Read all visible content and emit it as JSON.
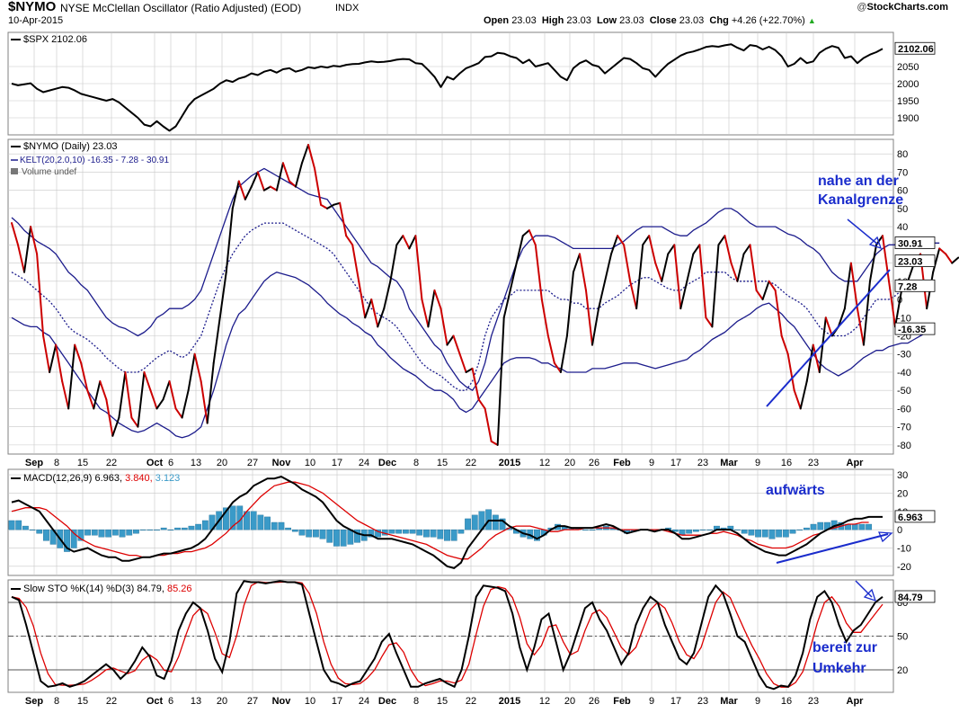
{
  "header": {
    "symbol": "$NYMO",
    "description": "NYSE McClellan Oscillator (Ratio Adjusted) (EOD)",
    "exchange": "INDX",
    "date": "10-Apr-2015",
    "open_label": "Open",
    "open": "23.03",
    "high_label": "High",
    "high": "23.03",
    "low_label": "Low",
    "low": "23.03",
    "close_label": "Close",
    "close": "23.03",
    "chg_label": "Chg",
    "chg": "+4.26 (+22.70%)",
    "brand_prefix": "@",
    "brand": "StockCharts.com",
    "chg_icon": "triangle-up-icon"
  },
  "colors": {
    "price": "#000000",
    "price_down": "#cc0000",
    "kelt": "#1c1c8c",
    "macd_line": "#000000",
    "signal_line": "#dd0000",
    "histogram": "#3a9ac8",
    "annotation": "#1a2ccc",
    "grid": "#c8c8c8"
  },
  "annotations": [
    {
      "panel": "nymo",
      "text": "nahe an der"
    },
    {
      "panel": "nymo",
      "text": "Kanalgrenze"
    },
    {
      "panel": "macd",
      "text": "aufwärts"
    },
    {
      "panel": "sto",
      "text": "bereit zur"
    },
    {
      "panel": "sto",
      "text": "Umkehr"
    }
  ],
  "chart_data": [
    {
      "panel": "spx",
      "type": "line",
      "legend": "$SPX 2102.06",
      "last_value": "2102.06",
      "ylim": [
        1850,
        2150
      ],
      "yticks": [
        1900,
        1950,
        2000,
        2050
      ],
      "values": [
        2000,
        1995,
        1998,
        2001,
        1985,
        1975,
        1980,
        1985,
        1990,
        1988,
        1980,
        1970,
        1965,
        1960,
        1955,
        1950,
        1955,
        1945,
        1930,
        1915,
        1900,
        1880,
        1875,
        1890,
        1875,
        1862,
        1875,
        1905,
        1935,
        1955,
        1965,
        1975,
        1985,
        2000,
        2010,
        2005,
        2015,
        2020,
        2030,
        2025,
        2035,
        2040,
        2032,
        2042,
        2045,
        2035,
        2040,
        2048,
        2045,
        2050,
        2047,
        2052,
        2050,
        2055,
        2057,
        2058,
        2062,
        2065,
        2063,
        2064,
        2066,
        2070,
        2072,
        2071,
        2060,
        2058,
        2040,
        2020,
        1990,
        2020,
        2012,
        2030,
        2045,
        2052,
        2060,
        2078,
        2080,
        2090,
        2088,
        2080,
        2075,
        2060,
        2070,
        2050,
        2055,
        2060,
        2040,
        2020,
        2010,
        2045,
        2060,
        2068,
        2055,
        2050,
        2030,
        2045,
        2060,
        2075,
        2072,
        2060,
        2045,
        2040,
        2020,
        2040,
        2058,
        2070,
        2082,
        2090,
        2094,
        2100,
        2107,
        2110,
        2108,
        2112,
        2115,
        2105,
        2097,
        2113,
        2110,
        2100,
        2108,
        2098,
        2080,
        2050,
        2058,
        2075,
        2060,
        2065,
        2090,
        2102,
        2110,
        2105,
        2075,
        2080,
        2060,
        2075,
        2085,
        2092,
        2102
      ]
    },
    {
      "panel": "nymo",
      "type": "line",
      "legend": "$NYMO (Daily) 23.03",
      "legend2": "KELT(20,2.0,10) -16.35 - 7.28 - 30.91",
      "legend3": "Volume undef",
      "ylim": [
        -85,
        88
      ],
      "yticks": [
        -80,
        -70,
        -60,
        -50,
        -40,
        -30,
        -20,
        -10,
        0,
        10,
        20,
        30,
        40,
        50,
        60,
        70,
        80
      ],
      "labels": {
        "last": "23.03",
        "upper": "30.91",
        "middle": "7.28",
        "lower": "-16.35"
      },
      "values": [
        42,
        30,
        15,
        40,
        25,
        -20,
        -40,
        -25,
        -45,
        -60,
        -25,
        -35,
        -50,
        -60,
        -45,
        -55,
        -75,
        -65,
        -40,
        -65,
        -70,
        -40,
        -50,
        -60,
        -55,
        -45,
        -60,
        -65,
        -50,
        -30,
        -45,
        -68,
        -35,
        -10,
        15,
        50,
        65,
        55,
        62,
        70,
        60,
        62,
        60,
        75,
        65,
        62,
        75,
        85,
        72,
        52,
        50,
        52,
        53,
        35,
        30,
        10,
        -10,
        0,
        -15,
        -5,
        10,
        30,
        35,
        28,
        35,
        0,
        -15,
        5,
        -5,
        -25,
        -20,
        -30,
        -40,
        -38,
        -55,
        -60,
        -78,
        -80,
        -10,
        5,
        20,
        35,
        38,
        30,
        0,
        -20,
        -35,
        -40,
        -20,
        15,
        25,
        5,
        -25,
        -5,
        10,
        25,
        35,
        30,
        10,
        -5,
        30,
        35,
        20,
        10,
        25,
        30,
        -5,
        10,
        25,
        30,
        -10,
        -15,
        30,
        35,
        20,
        10,
        25,
        30,
        5,
        0,
        10,
        5,
        -20,
        -30,
        -50,
        -60,
        -45,
        -25,
        -40,
        -10,
        -20,
        -15,
        -5,
        20,
        -5,
        -25,
        10,
        30,
        35,
        10,
        -15,
        5,
        10,
        20,
        25,
        -5,
        15,
        28,
        25,
        20,
        23
      ]
    },
    {
      "panel": "nymo",
      "type": "line",
      "series_of": "KELT",
      "name": "upper",
      "values": [
        45,
        42,
        38,
        35,
        32,
        30,
        28,
        25,
        20,
        15,
        12,
        8,
        5,
        0,
        -5,
        -10,
        -13,
        -15,
        -16,
        -18,
        -20,
        -18,
        -15,
        -10,
        -8,
        -5,
        -5,
        -5,
        -3,
        0,
        5,
        15,
        25,
        35,
        45,
        55,
        62,
        65,
        68,
        70,
        72,
        70,
        68,
        66,
        64,
        62,
        60,
        58,
        57,
        56,
        55,
        50,
        45,
        40,
        35,
        30,
        25,
        20,
        18,
        15,
        12,
        10,
        5,
        -5,
        -10,
        -15,
        -20,
        -25,
        -28,
        -35,
        -40,
        -45,
        -48,
        -50,
        -45,
        -35,
        -20,
        -10,
        0,
        10,
        20,
        28,
        32,
        35,
        35,
        35,
        34,
        32,
        30,
        28,
        28,
        28,
        28,
        28,
        28,
        28,
        30,
        32,
        35,
        38,
        40,
        40,
        40,
        40,
        38,
        36,
        35,
        35,
        38,
        40,
        42,
        45,
        48,
        50,
        50,
        48,
        45,
        42,
        40,
        40,
        40,
        40,
        38,
        36,
        35,
        33,
        30,
        28,
        25,
        20,
        15,
        12,
        10,
        10,
        10,
        15,
        20,
        25,
        28,
        30,
        30,
        30,
        32,
        33,
        33,
        32,
        31,
        31
      ]
    },
    {
      "panel": "nymo",
      "type": "line",
      "series_of": "KELT",
      "name": "middle",
      "values": [
        15,
        13,
        11,
        8,
        5,
        2,
        -1,
        -5,
        -10,
        -15,
        -18,
        -20,
        -22,
        -25,
        -28,
        -32,
        -35,
        -38,
        -40,
        -40,
        -40,
        -38,
        -35,
        -32,
        -30,
        -28,
        -30,
        -32,
        -30,
        -25,
        -20,
        -10,
        0,
        10,
        18,
        25,
        30,
        35,
        38,
        40,
        42,
        42,
        42,
        42,
        40,
        38,
        36,
        34,
        32,
        30,
        28,
        25,
        20,
        15,
        10,
        5,
        0,
        -5,
        -8,
        -10,
        -12,
        -15,
        -20,
        -25,
        -30,
        -35,
        -38,
        -40,
        -42,
        -45,
        -48,
        -50,
        -50,
        -45,
        -35,
        -20,
        -10,
        -5,
        0,
        2,
        5,
        5,
        5,
        5,
        5,
        5,
        2,
        0,
        0,
        -2,
        -2,
        -5,
        -5,
        -5,
        -2,
        0,
        2,
        5,
        8,
        10,
        12,
        12,
        10,
        8,
        6,
        5,
        5,
        8,
        10,
        12,
        15,
        15,
        15,
        15,
        12,
        10,
        10,
        10,
        10,
        10,
        10,
        8,
        5,
        2,
        0,
        -2,
        -5,
        -10,
        -15,
        -18,
        -20,
        -20,
        -20,
        -18,
        -15,
        -10,
        -5,
        0,
        0,
        0,
        2,
        5,
        7,
        7,
        7,
        7,
        7
      ]
    },
    {
      "panel": "nymo",
      "type": "line",
      "series_of": "KELT",
      "name": "lower",
      "values": [
        -10,
        -12,
        -14,
        -15,
        -15,
        -18,
        -20,
        -25,
        -30,
        -35,
        -40,
        -45,
        -50,
        -55,
        -60,
        -62,
        -65,
        -68,
        -70,
        -72,
        -73,
        -72,
        -70,
        -68,
        -70,
        -72,
        -75,
        -76,
        -75,
        -73,
        -70,
        -60,
        -50,
        -38,
        -25,
        -15,
        -8,
        -5,
        0,
        5,
        10,
        13,
        15,
        14,
        13,
        12,
        10,
        8,
        5,
        2,
        -2,
        -5,
        -8,
        -10,
        -13,
        -15,
        -18,
        -20,
        -25,
        -28,
        -32,
        -35,
        -38,
        -40,
        -42,
        -45,
        -48,
        -50,
        -50,
        -52,
        -55,
        -60,
        -62,
        -60,
        -55,
        -50,
        -45,
        -40,
        -35,
        -33,
        -32,
        -32,
        -32,
        -33,
        -35,
        -35,
        -37,
        -38,
        -40,
        -40,
        -40,
        -40,
        -38,
        -38,
        -38,
        -37,
        -36,
        -35,
        -35,
        -35,
        -36,
        -37,
        -38,
        -37,
        -36,
        -35,
        -34,
        -33,
        -30,
        -28,
        -25,
        -22,
        -20,
        -18,
        -15,
        -12,
        -10,
        -8,
        -5,
        -3,
        -2,
        -5,
        -8,
        -12,
        -15,
        -20,
        -25,
        -30,
        -35,
        -38,
        -40,
        -42,
        -40,
        -38,
        -35,
        -32,
        -30,
        -28,
        -28,
        -26,
        -25,
        -24,
        -24,
        -22,
        -20,
        -18,
        -16
      ]
    },
    {
      "panel": "macd",
      "type": "line",
      "legend": "MACD(12,26,9) 6.963, 3.840, 3.123",
      "legend_label": "MACD(12,26,9)",
      "legend_values": [
        "6.963",
        "3.840",
        "3.123"
      ],
      "last_value": "6.963",
      "ylim": [
        -25,
        33
      ],
      "yticks": [
        -20,
        -10,
        0,
        10,
        20,
        30
      ],
      "macd": [
        15,
        16,
        14,
        12,
        10,
        5,
        0,
        -5,
        -10,
        -12,
        -11,
        -10,
        -12,
        -14,
        -15,
        -15,
        -17,
        -17,
        -16,
        -15,
        -15,
        -14,
        -13,
        -13,
        -12,
        -11,
        -10,
        -8,
        -5,
        0,
        5,
        10,
        15,
        18,
        20,
        24,
        26,
        28,
        28,
        29,
        27,
        25,
        22,
        20,
        18,
        15,
        10,
        5,
        2,
        0,
        -2,
        -3,
        -3,
        -5,
        -5,
        -5,
        -6,
        -7,
        -8,
        -10,
        -12,
        -14,
        -17,
        -20,
        -21,
        -18,
        -10,
        -5,
        0,
        5,
        5,
        5,
        2,
        0,
        -2,
        -3,
        -5,
        -3,
        0,
        2,
        2,
        1,
        1,
        1,
        1,
        2,
        3,
        2,
        0,
        -2,
        -1,
        0,
        0,
        -1,
        0,
        0,
        -2,
        -5,
        -5,
        -4,
        -3,
        -2,
        0,
        0,
        0,
        -2,
        -5,
        -8,
        -10,
        -12,
        -13,
        -14,
        -14,
        -12,
        -10,
        -8,
        -5,
        -2,
        0,
        2,
        3,
        5,
        6,
        6,
        7,
        7,
        7
      ],
      "signal": [
        10,
        11,
        12,
        12,
        12,
        11,
        8,
        5,
        2,
        -2,
        -5,
        -7,
        -9,
        -10,
        -11,
        -12,
        -13,
        -14,
        -14,
        -15,
        -15,
        -14,
        -14,
        -13,
        -13,
        -12,
        -12,
        -11,
        -10,
        -8,
        -5,
        -2,
        2,
        5,
        10,
        14,
        18,
        21,
        24,
        25,
        26,
        26,
        25,
        24,
        22,
        20,
        17,
        14,
        11,
        8,
        5,
        3,
        1,
        -1,
        -2,
        -3,
        -4,
        -5,
        -6,
        -7,
        -8,
        -10,
        -12,
        -14,
        -15,
        -16,
        -16,
        -13,
        -10,
        -6,
        -3,
        -1,
        1,
        2,
        2,
        2,
        1,
        0,
        -1,
        -1,
        0,
        0,
        0,
        1,
        1,
        1,
        1,
        1,
        0,
        0,
        0,
        0,
        0,
        0,
        0,
        -1,
        -2,
        -3,
        -3,
        -3,
        -3,
        -2,
        -2,
        -1,
        -2,
        -3,
        -5,
        -6,
        -8,
        -9,
        -10,
        -10,
        -10,
        -9,
        -7,
        -5,
        -3,
        -2,
        0,
        1,
        2,
        3,
        3,
        4,
        4
      ],
      "histogram": [
        5,
        5,
        2,
        0,
        -2,
        -6,
        -8,
        -10,
        -12,
        -10,
        -6,
        -3,
        -3,
        -4,
        -4,
        -3,
        -4,
        -3,
        -2,
        0,
        0,
        0,
        1,
        0,
        1,
        1,
        2,
        3,
        5,
        8,
        10,
        12,
        13,
        13,
        10,
        10,
        8,
        7,
        4,
        4,
        1,
        -1,
        -3,
        -4,
        -4,
        -5,
        -7,
        -9,
        -9,
        -8,
        -7,
        -6,
        -4,
        -4,
        -3,
        -2,
        -2,
        -2,
        -2,
        -3,
        -4,
        -4,
        -5,
        -6,
        -6,
        -2,
        6,
        8,
        10,
        11,
        8,
        6,
        1,
        -2,
        -4,
        -5,
        -6,
        -3,
        1,
        3,
        2,
        1,
        1,
        0,
        0,
        1,
        2,
        1,
        0,
        -2,
        -1,
        0,
        0,
        -1,
        0,
        1,
        -1,
        -3,
        -2,
        -1,
        0,
        0,
        2,
        1,
        2,
        0,
        -2,
        -3,
        -4,
        -4,
        -5,
        -4,
        -4,
        -2,
        0,
        1,
        3,
        4,
        4,
        5,
        4,
        3,
        3,
        3,
        3
      ]
    },
    {
      "panel": "sto",
      "type": "line",
      "legend": "Slow STO %K(14) %D(3) 84.79, 85.26",
      "legend_label": "Slow STO %K(14) %D(3)",
      "legend_values": [
        "84.79",
        "85.26"
      ],
      "last_value": "84.79",
      "ylim": [
        0,
        100
      ],
      "yticks": [
        20,
        50,
        80
      ],
      "k": [
        85,
        82,
        60,
        35,
        10,
        5,
        6,
        8,
        5,
        7,
        10,
        15,
        20,
        25,
        20,
        12,
        18,
        28,
        40,
        32,
        15,
        12,
        28,
        55,
        70,
        80,
        75,
        55,
        30,
        18,
        45,
        88,
        99,
        98,
        98,
        97,
        98,
        99,
        98,
        98,
        96,
        70,
        45,
        20,
        10,
        8,
        5,
        8,
        10,
        20,
        30,
        45,
        52,
        35,
        20,
        5,
        5,
        8,
        10,
        12,
        8,
        5,
        20,
        50,
        85,
        95,
        94,
        93,
        90,
        70,
        40,
        20,
        40,
        65,
        70,
        45,
        20,
        35,
        55,
        75,
        80,
        65,
        55,
        40,
        25,
        35,
        60,
        75,
        85,
        80,
        60,
        45,
        30,
        25,
        35,
        60,
        85,
        95,
        88,
        70,
        50,
        45,
        30,
        15,
        5,
        3,
        6,
        5,
        15,
        35,
        65,
        85,
        90,
        80,
        60,
        45,
        55,
        60,
        70,
        80,
        85
      ]
    }
  ],
  "xaxis_labels": [
    "Sep",
    "8",
    "15",
    "22",
    "Oct",
    "6",
    "13",
    "20",
    "27",
    "Nov",
    "10",
    "17",
    "24",
    "Dec",
    "8",
    "15",
    "22",
    "2015",
    "12",
    "20",
    "26",
    "Feb",
    "9",
    "17",
    "23",
    "Mar",
    "9",
    "16",
    "23",
    "Apr"
  ]
}
